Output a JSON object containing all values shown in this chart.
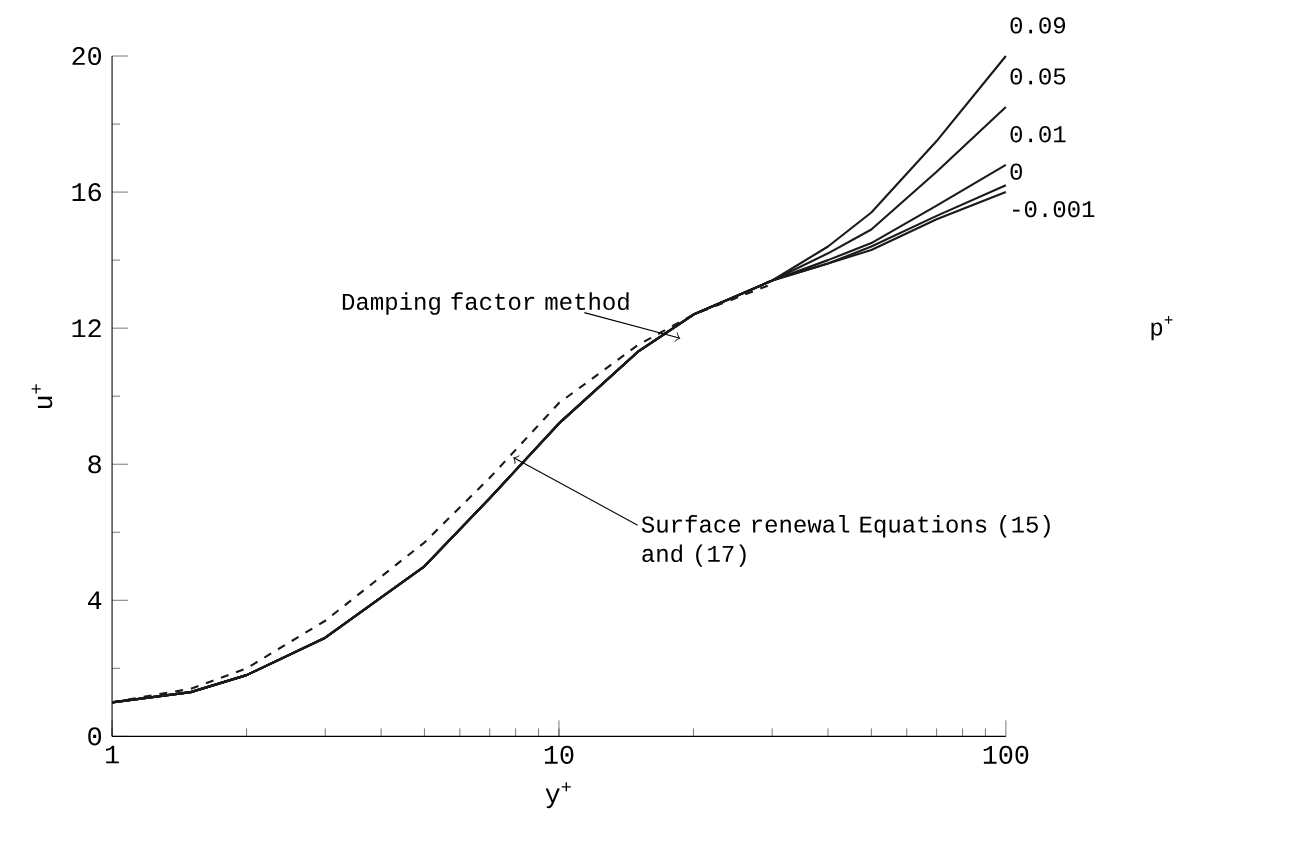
{
  "chart_data": {
    "type": "line",
    "xlabel": "y$^{+}$",
    "ylabel": "u$^{+}$",
    "log": "x",
    "xlim": [
      1,
      100
    ],
    "ylim": [
      0,
      20
    ],
    "xticks": [
      1,
      10,
      100
    ],
    "yticks": [
      0,
      4,
      8,
      12,
      16,
      20
    ],
    "line_style": "solid",
    "marker": "none",
    "series": [
      {
        "name": "0.09",
        "color": "#1a1a1a",
        "x": [
          1,
          1.5,
          2,
          3,
          5,
          7,
          10,
          15,
          20,
          30,
          40,
          50,
          70,
          100
        ],
        "values": [
          1.0,
          1.3,
          1.8,
          2.9,
          5.0,
          7.0,
          9.2,
          11.3,
          12.4,
          13.4,
          14.4,
          15.4,
          17.5,
          20.0
        ]
      },
      {
        "name": "0.05",
        "color": "#1a1a1a",
        "x": [
          1,
          1.5,
          2,
          3,
          5,
          7,
          10,
          15,
          20,
          30,
          40,
          50,
          70,
          100
        ],
        "values": [
          1.0,
          1.3,
          1.8,
          2.9,
          5.0,
          7.0,
          9.2,
          11.3,
          12.4,
          13.4,
          14.2,
          14.9,
          16.6,
          18.5
        ]
      },
      {
        "name": "0.01",
        "color": "#1a1a1a",
        "x": [
          1,
          1.5,
          2,
          3,
          5,
          7,
          10,
          15,
          20,
          30,
          40,
          50,
          70,
          100
        ],
        "values": [
          1.0,
          1.3,
          1.8,
          2.9,
          5.0,
          7.0,
          9.2,
          11.3,
          12.4,
          13.4,
          14.0,
          14.5,
          15.6,
          16.8
        ]
      },
      {
        "name": "0",
        "color": "#1a1a1a",
        "x": [
          1,
          1.5,
          2,
          3,
          5,
          7,
          10,
          15,
          20,
          30,
          40,
          50,
          70,
          100
        ],
        "values": [
          1.0,
          1.3,
          1.8,
          2.9,
          5.0,
          7.0,
          9.2,
          11.3,
          12.4,
          13.4,
          13.9,
          14.4,
          15.3,
          16.2
        ]
      },
      {
        "name": "-0.001",
        "color": "#1a1a1a",
        "x": [
          1,
          1.5,
          2,
          3,
          5,
          7,
          10,
          15,
          20,
          30,
          40,
          50,
          70,
          100
        ],
        "values": [
          1.0,
          1.3,
          1.8,
          2.9,
          5.0,
          7.0,
          9.2,
          11.3,
          12.4,
          13.4,
          13.9,
          14.3,
          15.2,
          16.0
        ]
      },
      {
        "color": "#1a1a1a",
        "line_style": "dashed",
        "x": [
          1,
          1.5,
          2,
          3,
          5,
          7,
          10,
          15,
          20,
          30
        ],
        "values": [
          1.0,
          1.4,
          2.0,
          3.4,
          5.7,
          7.6,
          9.8,
          11.5,
          12.4,
          13.3
        ]
      }
    ],
    "annotations": [
      {
        "text": "Damping factor method",
        "x": 18.7,
        "y": 11.7
      },
      {
        "text": "Surface renewal Equations (15) and (17)",
        "x": 7.9,
        "y": 8.2
      },
      "p$^{+}$"
    ]
  }
}
